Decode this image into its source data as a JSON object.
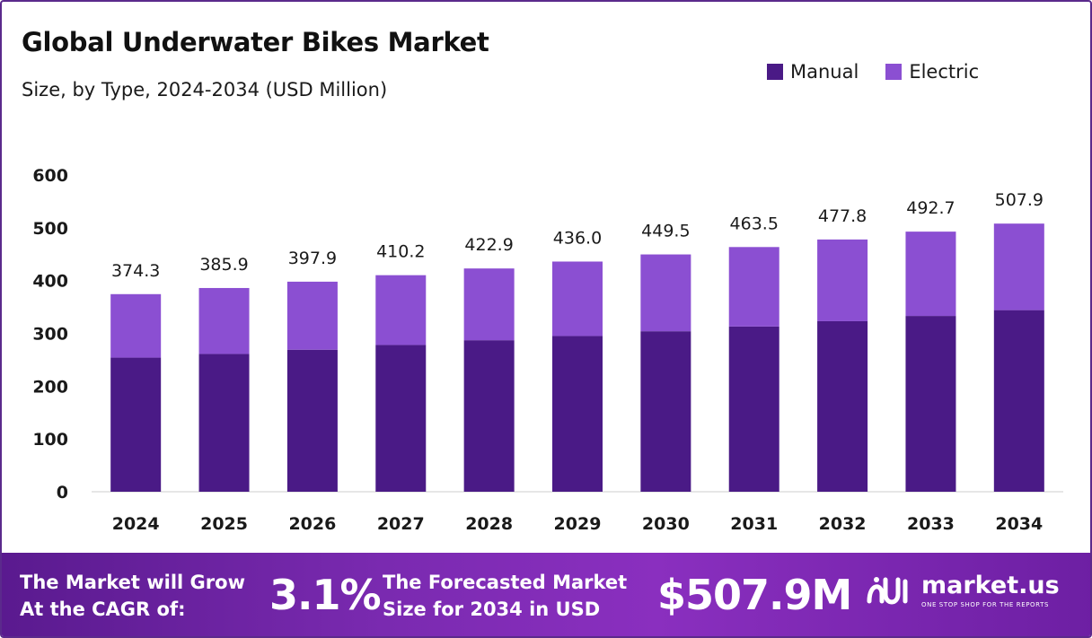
{
  "header": {
    "title": "Global Underwater Bikes Market",
    "subtitle": "Size, by Type, 2024-2034 (USD Million)"
  },
  "colors": {
    "manual": "#4a1a86",
    "electric": "#8b4fd2",
    "axis": "#cccccc",
    "frame": "#5b2a8c"
  },
  "chart_data": {
    "type": "bar",
    "stacked": true,
    "categories": [
      "2024",
      "2025",
      "2026",
      "2027",
      "2028",
      "2029",
      "2030",
      "2031",
      "2032",
      "2033",
      "2034"
    ],
    "series": [
      {
        "name": "Manual",
        "values": [
          254,
          261,
          269,
          278,
          287,
          295,
          304,
          313,
          323,
          333,
          344
        ]
      },
      {
        "name": "Electric",
        "values": [
          120.3,
          124.9,
          128.9,
          132.2,
          135.9,
          141.0,
          145.5,
          150.5,
          154.8,
          159.7,
          163.9
        ]
      }
    ],
    "totals": [
      "374.3",
      "385.9",
      "397.9",
      "410.2",
      "422.9",
      "436.0",
      "449.5",
      "463.5",
      "477.8",
      "492.7",
      "507.9"
    ],
    "ylim": [
      0,
      600
    ],
    "yticks": [
      "0",
      "100",
      "200",
      "300",
      "400",
      "500",
      "600"
    ],
    "legend_position": "top-right",
    "grid": false
  },
  "footer": {
    "cagr_line1": "The Market will Grow",
    "cagr_line2": "At the CAGR of:",
    "cagr_value": "3.1%",
    "forecast_line1": "The Forecasted Market",
    "forecast_line2": "Size for 2034 in USD",
    "forecast_value": "$507.9M",
    "logo_name": "market.us",
    "logo_tagline": "ONE STOP SHOP FOR THE REPORTS",
    "logo_icon": "market-us-logo-icon"
  }
}
